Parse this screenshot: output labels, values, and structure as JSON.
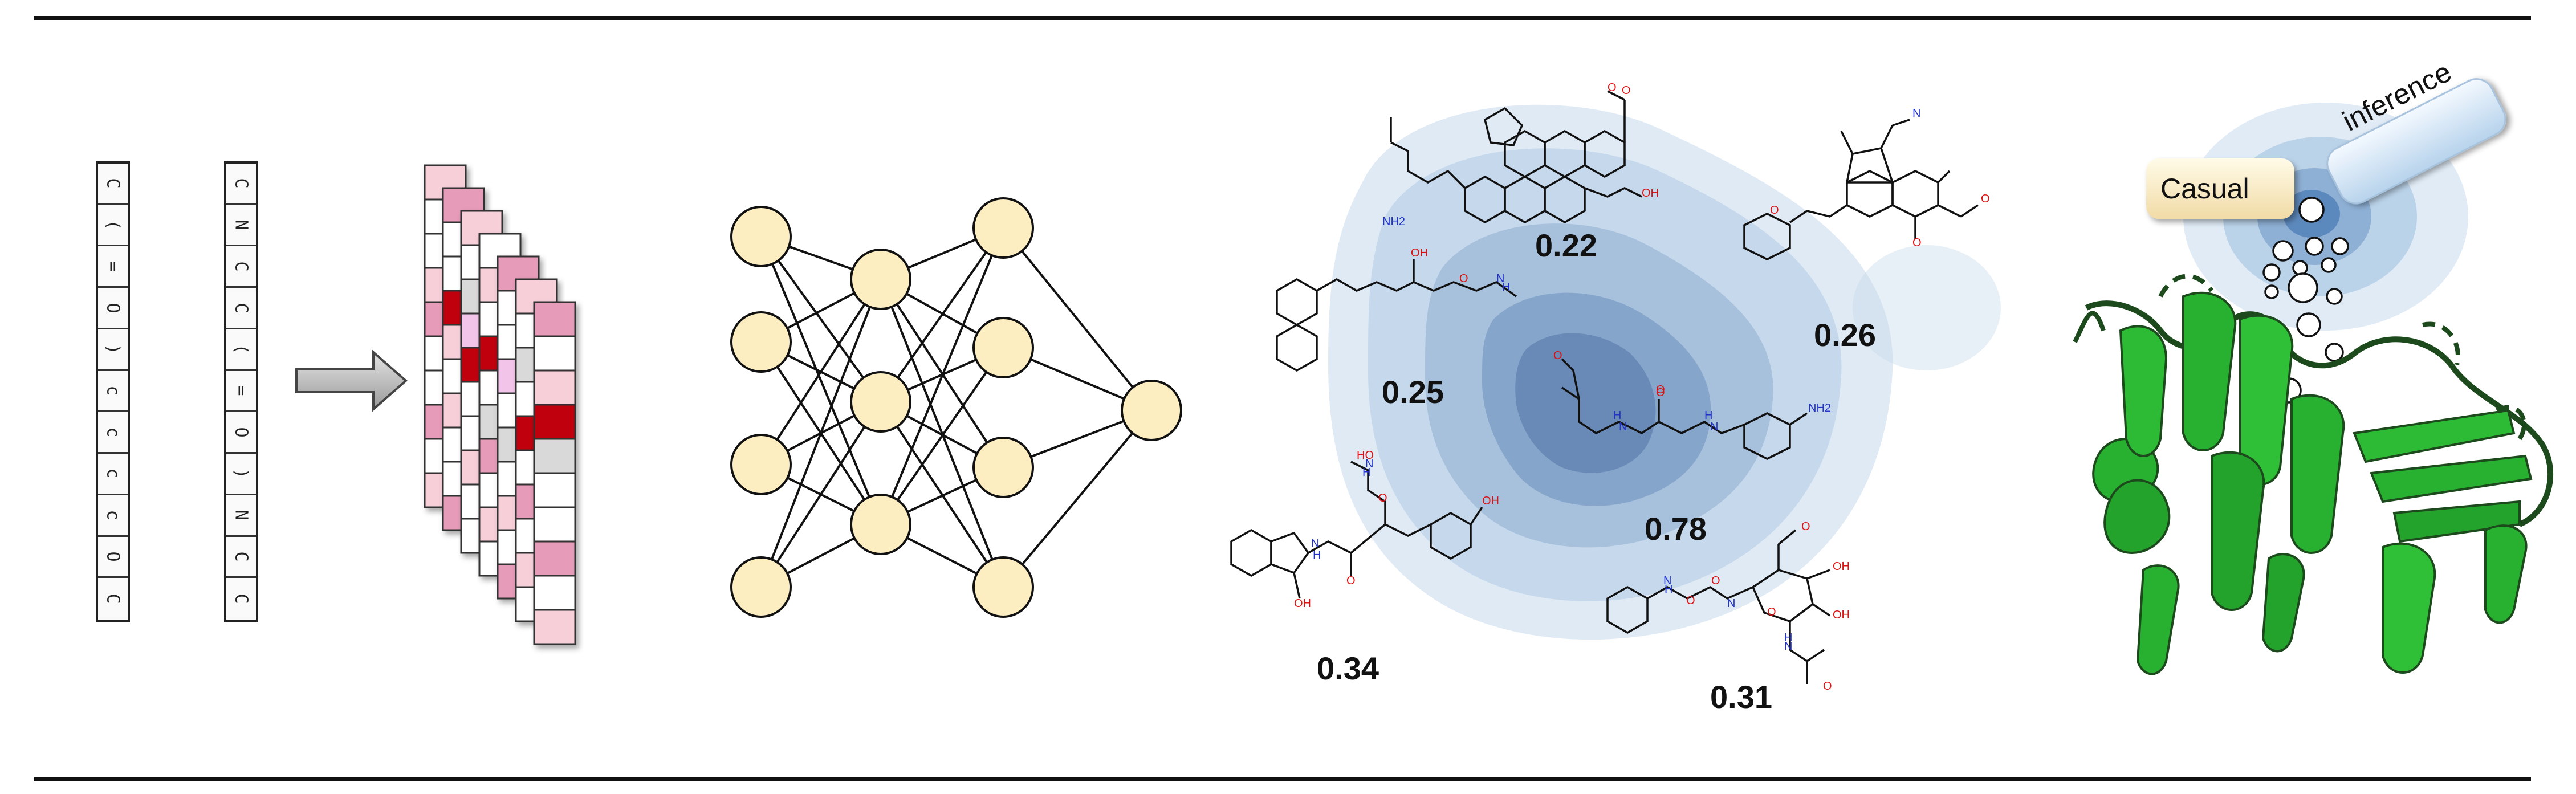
{
  "sequences": [
    [
      "C",
      "(",
      "=",
      "O",
      ")",
      "c",
      "c",
      "c",
      "c",
      "O",
      "C"
    ],
    [
      "C",
      "N",
      "C",
      "C",
      "(",
      "=",
      "O",
      ")",
      "N",
      "C",
      "C"
    ]
  ],
  "feature_map": {
    "colors": {
      "dark": "#c0000c",
      "medium": "#e69bb8",
      "light": "#f7cfd9",
      "lavender": "#f3c4ea",
      "grey": "#d9d9d9",
      "white": "#ffffff"
    },
    "layers": [
      [
        "light",
        "white",
        "white",
        "light",
        "medium",
        "white",
        "white",
        "medium",
        "white",
        "light"
      ],
      [
        "medium",
        "white",
        "white",
        "dark",
        "light",
        "white",
        "light",
        "white",
        "white",
        "medium"
      ],
      [
        "light",
        "white",
        "grey",
        "lavender",
        "dark",
        "white",
        "white",
        "light",
        "white",
        "white"
      ],
      [
        "white",
        "light",
        "white",
        "dark",
        "white",
        "grey",
        "medium",
        "white",
        "light",
        "white"
      ],
      [
        "medium",
        "white",
        "white",
        "lavender",
        "white",
        "grey",
        "white",
        "light",
        "white",
        "medium"
      ],
      [
        "light",
        "white",
        "grey",
        "white",
        "dark",
        "white",
        "medium",
        "white",
        "light",
        "white"
      ],
      [
        "medium",
        "white",
        "light",
        "dark",
        "grey",
        "white",
        "white",
        "medium",
        "white",
        "light"
      ]
    ]
  },
  "network": {
    "layers": [
      4,
      3,
      4,
      4,
      1
    ],
    "node_color": "#fdeec2"
  },
  "molecules": [
    {
      "score": "0.22",
      "labels": [
        "NH2",
        "O",
        "OH",
        "O"
      ]
    },
    {
      "score": "0.26",
      "labels": [
        "N",
        "O",
        "O",
        "O"
      ]
    },
    {
      "score": "0.25",
      "labels": [
        "O",
        "OH",
        "H",
        "N"
      ]
    },
    {
      "score": "0.78",
      "labels": [
        "O",
        "O",
        "H",
        "N",
        "O",
        "H",
        "N",
        "NH2"
      ]
    },
    {
      "score": "0.34",
      "labels": [
        "HO",
        "N",
        "H",
        "O",
        "N",
        "H",
        "O",
        "OH",
        "OH"
      ]
    },
    {
      "score": "0.31",
      "labels": [
        "N",
        "H",
        "O",
        "O",
        "N",
        "O",
        "OH",
        "OH",
        "O",
        "N",
        "H",
        "O"
      ]
    }
  ],
  "causal": {
    "tag_left": "Casual",
    "tag_right": "inference",
    "protein_color": "#28b030"
  }
}
